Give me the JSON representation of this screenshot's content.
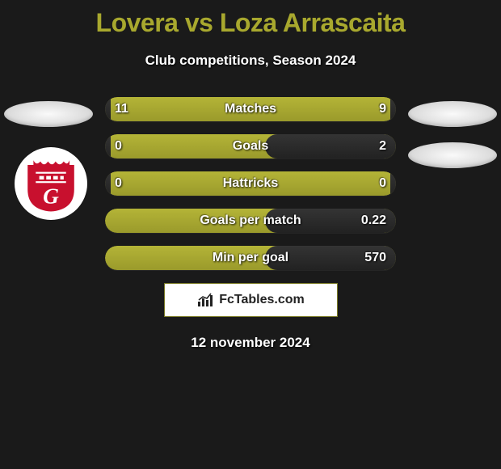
{
  "title": "Lovera vs Loza Arrascaita",
  "subtitle": "Club competitions, Season 2024",
  "date": "12 november 2024",
  "brand": "FcTables.com",
  "colors": {
    "accent": "#a8a82e",
    "bar_fill": "#a8a82e",
    "bar_empty": "#2b2b2b",
    "background": "#1a1a1a",
    "text": "#ffffff"
  },
  "bars": [
    {
      "label": "Matches",
      "left": "11",
      "right": "9",
      "left_pct": 2,
      "right_pct": 2
    },
    {
      "label": "Goals",
      "left": "0",
      "right": "2",
      "left_pct": 2,
      "right_pct": 45
    },
    {
      "label": "Hattricks",
      "left": "0",
      "right": "0",
      "left_pct": 2,
      "right_pct": 2
    },
    {
      "label": "Goals per match",
      "left": "",
      "right": "0.22",
      "left_pct": 0,
      "right_pct": 45
    },
    {
      "label": "Min per goal",
      "left": "",
      "right": "570",
      "left_pct": 0,
      "right_pct": 45
    }
  ],
  "badge": {
    "letter": "G",
    "primary": "#c8102e",
    "secondary": "#ffffff"
  }
}
